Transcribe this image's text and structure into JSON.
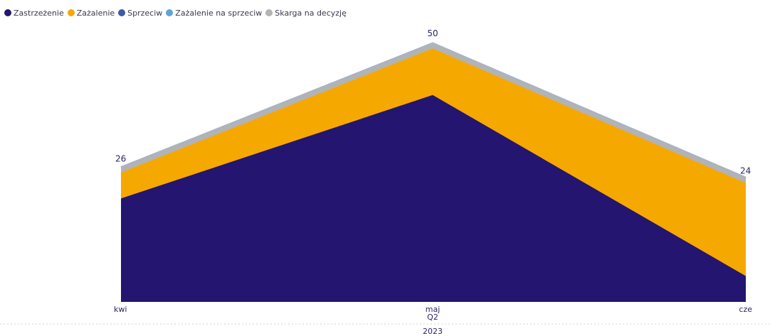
{
  "legend": [
    {
      "name": "Zastrzeżenie",
      "color": "#241570"
    },
    {
      "name": "Zażalenie",
      "color": "#F5A800"
    },
    {
      "name": "Sprzeciw",
      "color": "#3B5BA5"
    },
    {
      "name": "Zażalenie na sprzeciw",
      "color": "#5BA4DB"
    },
    {
      "name": "Skarga na decyzję",
      "color": "#B3B3B3"
    }
  ],
  "chart_data": {
    "type": "area",
    "stacked": true,
    "categories": [
      "kwi",
      "maj",
      "cze"
    ],
    "x_hierarchy": {
      "quarter": "Q2",
      "year": "2023"
    },
    "series": [
      {
        "name": "Zastrzeżenie",
        "values": [
          20,
          40,
          5
        ],
        "color": "#241570"
      },
      {
        "name": "Zażalenie",
        "values": [
          5,
          9,
          18
        ],
        "color": "#F5A800"
      },
      {
        "name": "Sprzeciw",
        "values": [
          0,
          0,
          0
        ],
        "color": "#3B5BA5"
      },
      {
        "name": "Zażalenie na sprzeciw",
        "values": [
          0,
          0,
          0
        ],
        "color": "#5BA4DB"
      },
      {
        "name": "Skarga na decyzję",
        "values": [
          1,
          1,
          1
        ],
        "color": "#B3B3B3"
      }
    ],
    "totals": [
      26,
      50,
      24
    ],
    "ylim": [
      0,
      50
    ],
    "grid": false,
    "legend_position": "top-left"
  }
}
